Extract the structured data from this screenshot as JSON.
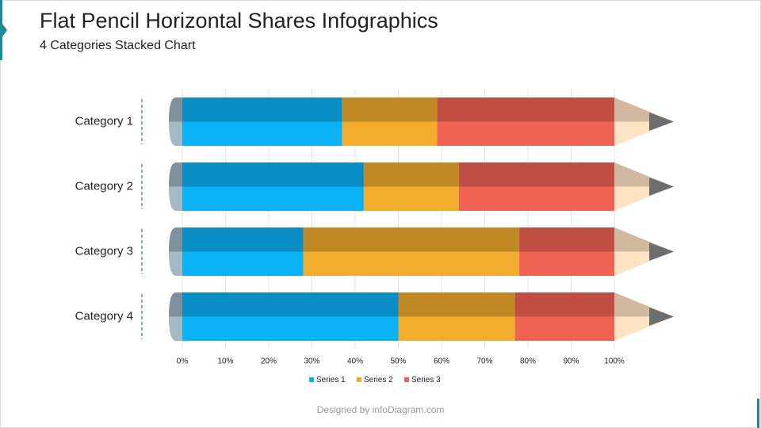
{
  "title": "Flat Pencil Horizontal Shares Infographics",
  "subtitle": "4 Categories Stacked Chart",
  "footer": "Designed by infoDiagram.com",
  "chart_data": {
    "type": "bar",
    "orientation": "horizontal",
    "stacked": true,
    "categories": [
      "Category 1",
      "Category 2",
      "Category 3",
      "Category 4"
    ],
    "series": [
      {
        "name": "Series 1",
        "color": "#0ab1f5",
        "values": [
          37,
          42,
          28,
          50
        ]
      },
      {
        "name": "Series 2",
        "color": "#f2ac2e",
        "values": [
          22,
          22,
          50,
          27
        ]
      },
      {
        "name": "Series 3",
        "color": "#f06253",
        "values": [
          41,
          36,
          22,
          23
        ]
      }
    ],
    "xlim": [
      0,
      100
    ],
    "xticks": [
      {
        "value": 0,
        "label": "0%"
      },
      {
        "value": 10,
        "label": "10%"
      },
      {
        "value": 20,
        "label": "20%"
      },
      {
        "value": 30,
        "label": "30%"
      },
      {
        "value": 40,
        "label": "40%"
      },
      {
        "value": 50,
        "label": "50%"
      },
      {
        "value": 60,
        "label": "60%"
      },
      {
        "value": 70,
        "label": "70%"
      },
      {
        "value": 80,
        "label": "80%"
      },
      {
        "value": 90,
        "label": "90%"
      },
      {
        "value": 100,
        "label": "100%"
      }
    ],
    "grid": true,
    "legend": "bottom"
  }
}
